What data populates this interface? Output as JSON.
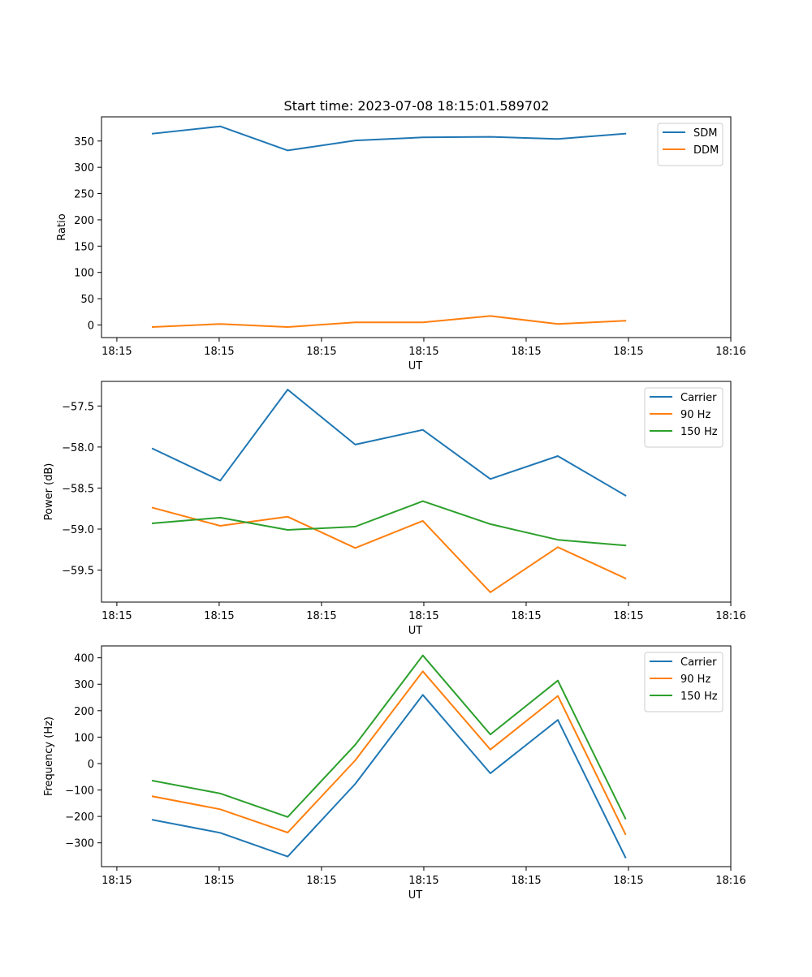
{
  "figure_title": "Start time: 2023-07-08 18:15:01.589702",
  "colors": {
    "blue": "#1f77b4",
    "orange": "#ff7f0e",
    "green": "#2ca02c"
  },
  "chart_data": [
    {
      "type": "line",
      "title": "Start time: 2023-07-08 18:15:01.589702",
      "xlabel": "UT",
      "ylabel": "Ratio",
      "x": [
        0.5,
        1.16,
        1.82,
        2.48,
        3.14,
        3.8,
        4.46,
        5.12
      ],
      "xlim": [
        0,
        6.15
      ],
      "x_ticks": [
        0.15,
        1.15,
        2.15,
        3.15,
        4.15,
        5.15,
        6.15
      ],
      "x_tick_labels": [
        "18:15",
        "18:15",
        "18:15",
        "18:15",
        "18:15",
        "18:15",
        "18:16"
      ],
      "ylim": [
        -24,
        396
      ],
      "y_ticks": [
        0,
        50,
        100,
        150,
        200,
        250,
        300,
        350
      ],
      "y_tick_labels": [
        "0",
        "50",
        "100",
        "150",
        "200",
        "250",
        "300",
        "350"
      ],
      "legend_position": "top-right",
      "series": [
        {
          "name": "SDM",
          "color": "#1f77b4",
          "values": [
            364,
            378,
            332,
            351,
            357,
            358,
            354,
            364
          ]
        },
        {
          "name": "DDM",
          "color": "#ff7f0e",
          "values": [
            -4,
            2,
            -4,
            5,
            5,
            17,
            2,
            8
          ]
        }
      ]
    },
    {
      "type": "line",
      "title": "",
      "xlabel": "UT",
      "ylabel": "Power (dB)",
      "x": [
        0.5,
        1.16,
        1.82,
        2.48,
        3.14,
        3.8,
        4.46,
        5.12
      ],
      "xlim": [
        0,
        6.15
      ],
      "x_ticks": [
        0.15,
        1.15,
        2.15,
        3.15,
        4.15,
        5.15,
        6.15
      ],
      "x_tick_labels": [
        "18:15",
        "18:15",
        "18:15",
        "18:15",
        "18:15",
        "18:15",
        "18:16"
      ],
      "ylim": [
        -59.89,
        -57.2
      ],
      "y_ticks": [
        -57.5,
        -58.0,
        -58.5,
        -59.0,
        -59.5
      ],
      "y_tick_labels": [
        "−57.5",
        "−58.0",
        "−58.5",
        "−59.0",
        "−59.5"
      ],
      "legend_position": "top-right",
      "series": [
        {
          "name": "Carrier",
          "color": "#1f77b4",
          "values": [
            -58.02,
            -58.41,
            -57.3,
            -57.97,
            -57.79,
            -58.39,
            -58.11,
            -58.59
          ]
        },
        {
          "name": "90 Hz",
          "color": "#ff7f0e",
          "values": [
            -58.74,
            -58.96,
            -58.85,
            -59.23,
            -58.9,
            -59.77,
            -59.22,
            -59.6
          ]
        },
        {
          "name": "150 Hz",
          "color": "#2ca02c",
          "values": [
            -58.93,
            -58.86,
            -59.01,
            -58.97,
            -58.66,
            -58.94,
            -59.13,
            -59.2
          ]
        }
      ]
    },
    {
      "type": "line",
      "title": "",
      "xlabel": "UT",
      "ylabel": "Frequency (Hz)",
      "x": [
        0.5,
        1.16,
        1.82,
        2.48,
        3.14,
        3.8,
        4.46,
        5.12
      ],
      "xlim": [
        0,
        6.15
      ],
      "x_ticks": [
        0.15,
        1.15,
        2.15,
        3.15,
        4.15,
        5.15,
        6.15
      ],
      "x_tick_labels": [
        "18:15",
        "18:15",
        "18:15",
        "18:15",
        "18:15",
        "18:15",
        "18:16"
      ],
      "ylim": [
        -390,
        445
      ],
      "y_ticks": [
        400,
        300,
        200,
        100,
        0,
        -100,
        -200,
        -300
      ],
      "y_tick_labels": [
        "400",
        "300",
        "200",
        "100",
        "0",
        "−100",
        "−200",
        "−300"
      ],
      "legend_position": "top-right",
      "series": [
        {
          "name": "Carrier",
          "color": "#1f77b4",
          "values": [
            -213,
            -262,
            -352,
            -77,
            260,
            -37,
            165,
            -355
          ]
        },
        {
          "name": "90 Hz",
          "color": "#ff7f0e",
          "values": [
            -124,
            -173,
            -261,
            12,
            349,
            53,
            256,
            -267
          ]
        },
        {
          "name": "150 Hz",
          "color": "#2ca02c",
          "values": [
            -65,
            -113,
            -202,
            71,
            409,
            110,
            314,
            -208
          ]
        }
      ]
    }
  ]
}
